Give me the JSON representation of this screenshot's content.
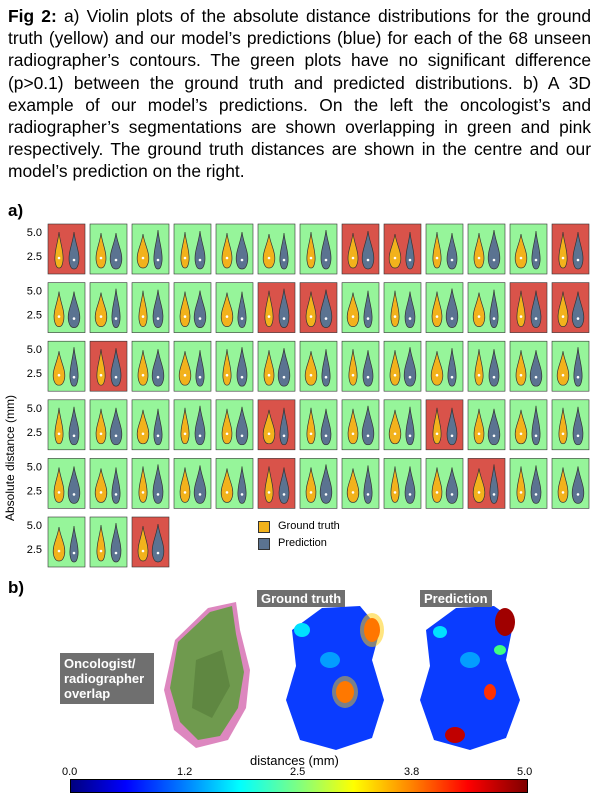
{
  "caption": {
    "prefix": "Fig 2:",
    "text": "a) Violin plots of the absolute distance distributions for the ground truth (yellow) and our model’s predictions (blue) for each of the 68 unseen radiographer’s contours. The green plots have no significant difference (p>0.1) between the ground truth and predicted distributions. b) A 3D example of our model’s predictions. On the left the oncologist’s and radiographer’s segmentations are shown overlapping in green and pink respectively. The ground truth distances are shown in the centre and our model’s prediction on the right."
  },
  "panel_a_label": "a)",
  "panel_b_label": "b)",
  "colors": {
    "ground_truth": "#f2b21c",
    "prediction": "#5b7391",
    "not_significant_bg": "#96f59a",
    "significant_bg": "#d9534a"
  },
  "chart_data": {
    "type": "violin-grid",
    "ylabel": "Absolute distance (mm)",
    "y_ticks": [
      "5.0",
      "2.5"
    ],
    "legend": [
      "Ground truth",
      "Prediction"
    ],
    "panels_per_row": [
      13,
      13,
      13,
      13,
      13,
      3
    ],
    "significant_panels": [
      [
        0,
        7,
        8,
        12
      ],
      [
        5,
        6,
        11,
        12
      ],
      [
        1
      ],
      [
        5,
        9
      ],
      [
        5,
        10
      ],
      [
        2
      ]
    ]
  },
  "panel_b": {
    "overlap_label": "Oncologist/ radiographer overlap",
    "ground_truth_label": "Ground truth",
    "prediction_label": "Prediction",
    "colorbar_title": "distances (mm)",
    "colorbar_ticks": [
      "0.0",
      "1.2",
      "2.5",
      "3.8",
      "5.0"
    ]
  }
}
